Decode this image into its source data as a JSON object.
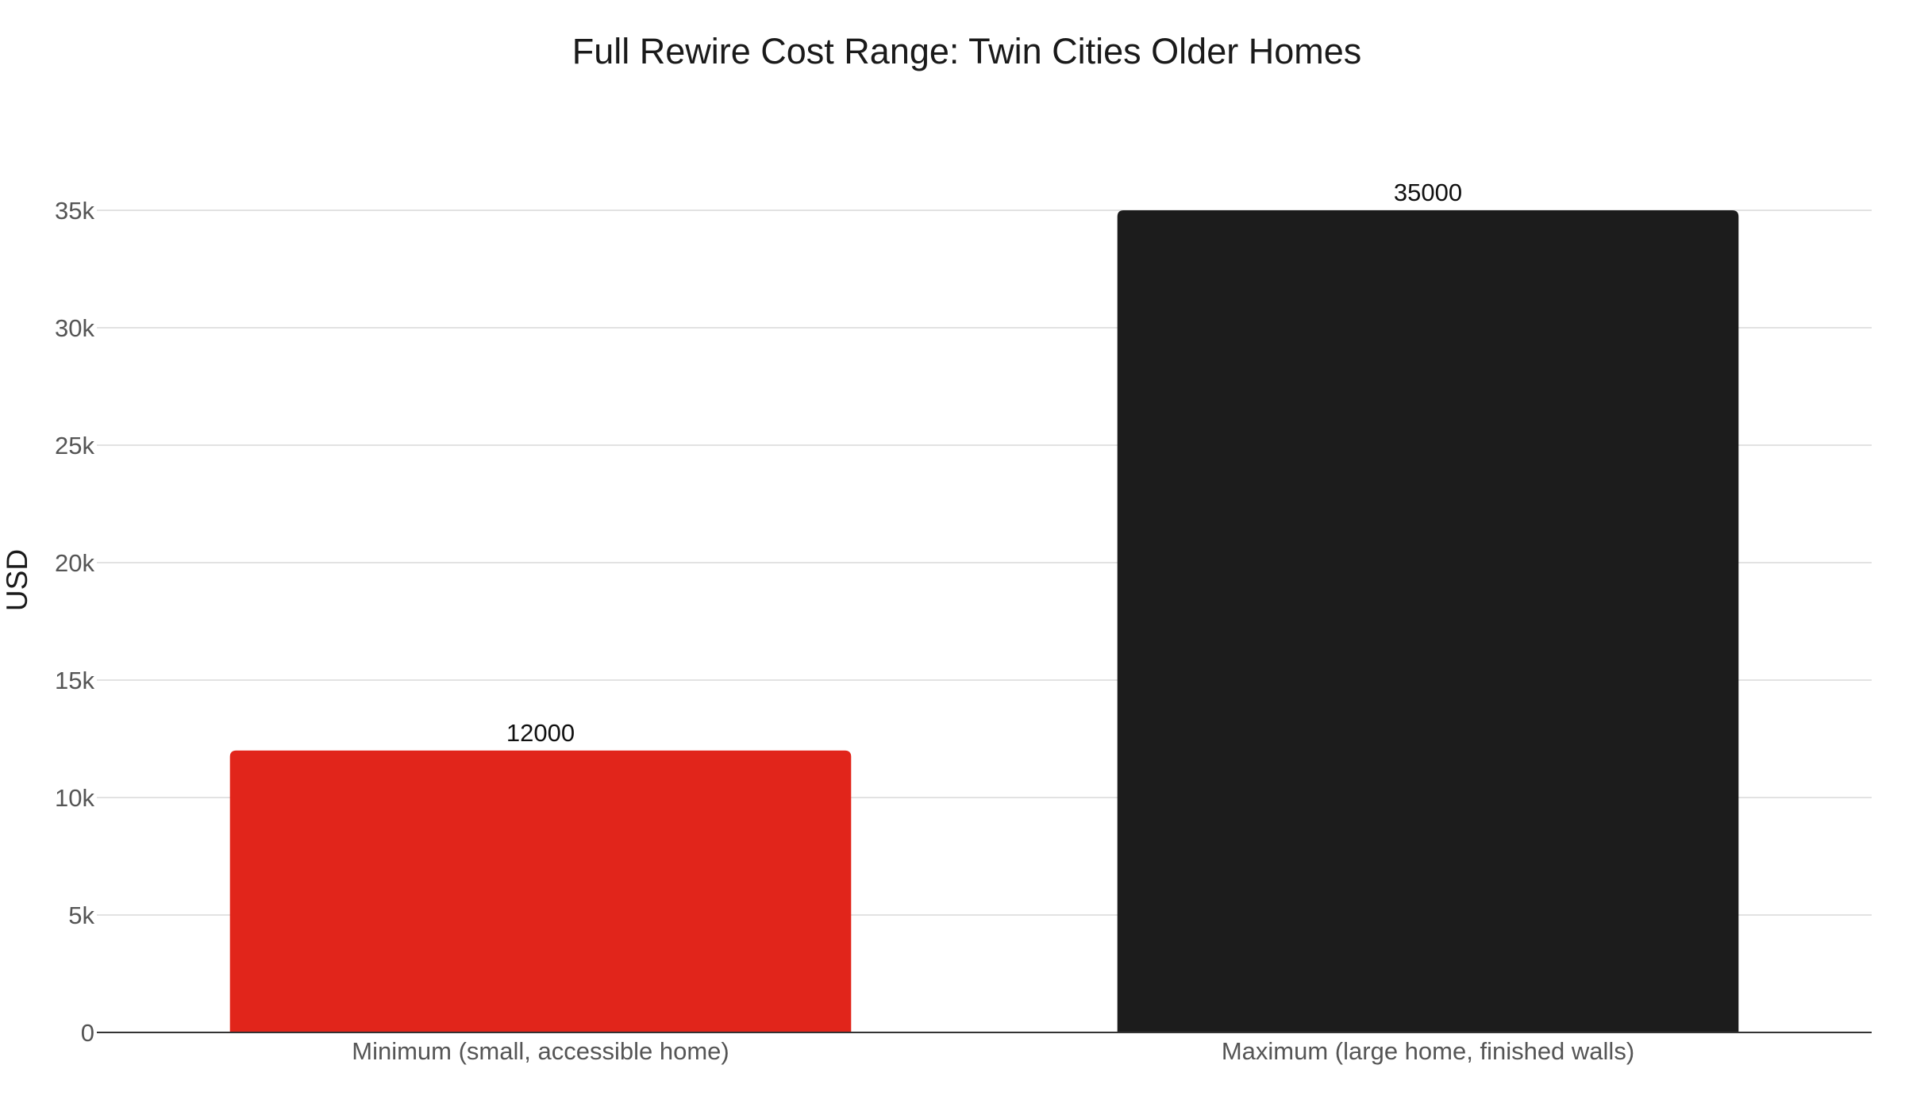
{
  "chart_data": {
    "type": "bar",
    "title": "Full Rewire Cost Range: Twin Cities Older Homes",
    "xlabel": "",
    "ylabel": "USD",
    "categories": [
      "Minimum (small, accessible home)",
      "Maximum (large home, finished walls)"
    ],
    "values": [
      12000,
      35000
    ],
    "value_labels": [
      "12000",
      "35000"
    ],
    "bar_colors": [
      "#e1251b",
      "#1c1c1c"
    ],
    "ylim": [
      0,
      35000
    ],
    "yticks": [
      0,
      5000,
      10000,
      15000,
      20000,
      25000,
      30000,
      35000
    ],
    "ytick_labels": [
      "0",
      "5k",
      "10k",
      "15k",
      "20k",
      "25k",
      "30k",
      "35k"
    ],
    "grid": true,
    "legend": "none"
  }
}
